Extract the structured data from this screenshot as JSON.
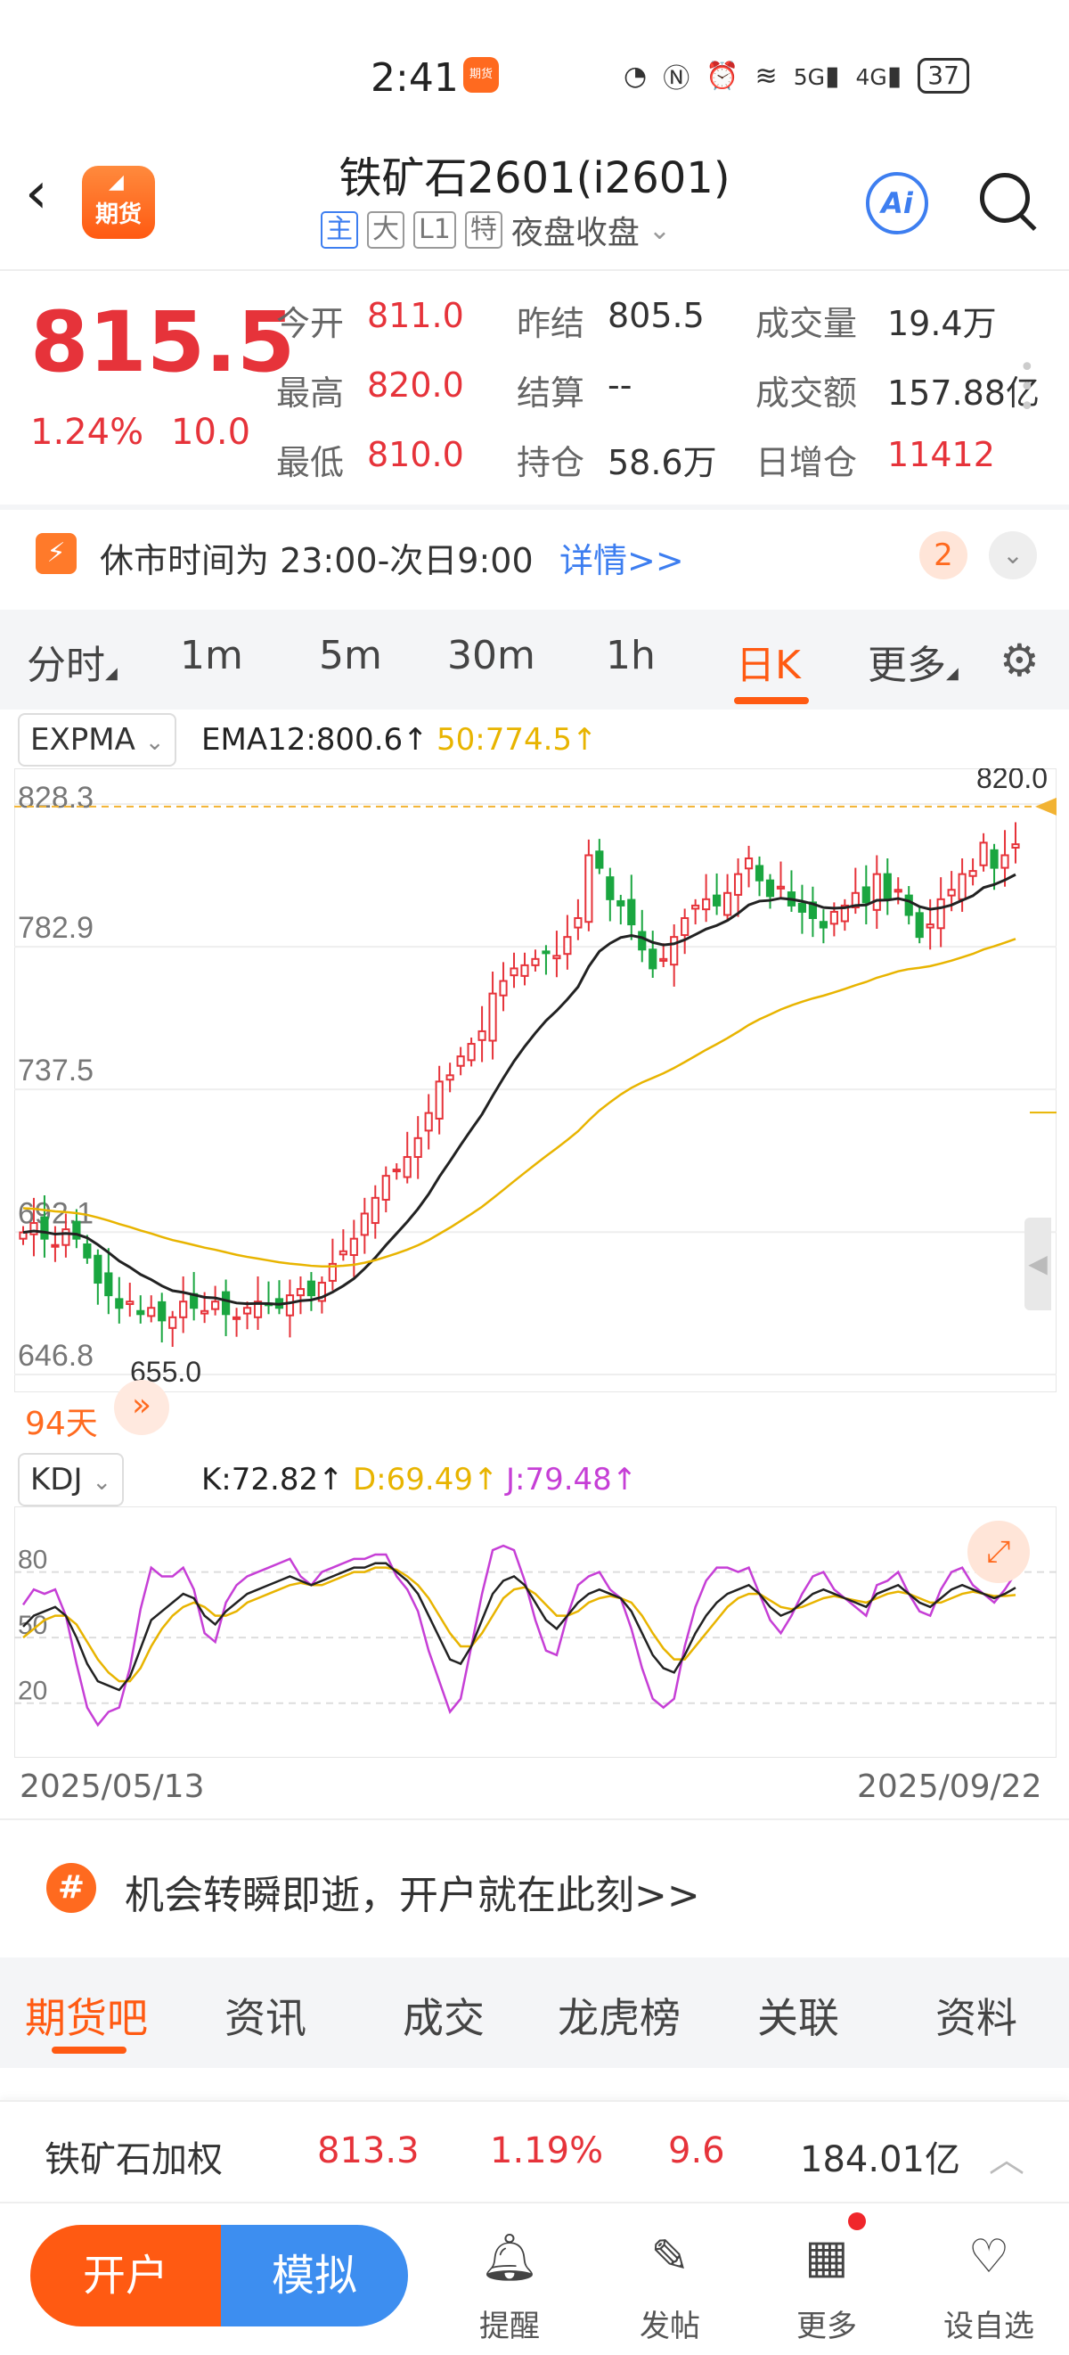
{
  "status": {
    "time": "2:41",
    "app_icon": "期货",
    "battery": "37",
    "signal1": "5G",
    "signal2": "4G"
  },
  "header": {
    "title": "铁矿石2601(i2601)",
    "tags": [
      "主",
      "大",
      "L1",
      "特"
    ],
    "session": "夜盘收盘",
    "logo_text": "期货",
    "ai_label": "Ai"
  },
  "quote": {
    "price": "815.5",
    "change_pct": "1.24%",
    "change": "10.0",
    "fields": [
      {
        "label": "今开",
        "value": "811.0",
        "color": "red"
      },
      {
        "label": "昨结",
        "value": "805.5",
        "color": "dark"
      },
      {
        "label": "成交量",
        "value": "19.4万",
        "color": "dark"
      },
      {
        "label": "最高",
        "value": "820.0",
        "color": "red"
      },
      {
        "label": "结算",
        "value": "--",
        "color": "dark"
      },
      {
        "label": "成交额",
        "value": "157.88亿",
        "color": "dark"
      },
      {
        "label": "最低",
        "value": "810.0",
        "color": "red"
      },
      {
        "label": "持仓",
        "value": "58.6万",
        "color": "dark"
      },
      {
        "label": "日增仓",
        "value": "11412",
        "color": "red"
      }
    ]
  },
  "notice": {
    "text": "休市时间为 23:00-次日9:00",
    "link": "详情>>",
    "badge": "2"
  },
  "period_tabs": [
    "分时",
    "1m",
    "5m",
    "30m",
    "1h",
    "日K",
    "更多"
  ],
  "active_period": "日K",
  "main_indicator": {
    "name": "EXPMA",
    "ema12": "EMA12:800.6↑",
    "ema50": "50:774.5↑"
  },
  "sub_indicator": {
    "name": "KDJ",
    "k": "K:72.82↑",
    "d": "D:69.49↑",
    "j": "J:79.48↑"
  },
  "days_label": "94天",
  "chart_data": [
    {
      "type": "candlestick",
      "title": "",
      "y_ticks": [
        "828.3",
        "782.9",
        "737.5",
        "692.1",
        "646.8"
      ],
      "ylim": [
        646.8,
        828.3
      ],
      "high_label": "820.0",
      "low_label": "655.0",
      "x_start": "2025/05/13",
      "x_end": "2025/09/22",
      "last_price_line": 815.5,
      "series": [
        {
          "name": "EMA12",
          "color": "#222222"
        },
        {
          "name": "50",
          "color": "#e8b400"
        }
      ],
      "closes": [
        692,
        695,
        690,
        688,
        693,
        690,
        684,
        676,
        672,
        668,
        670,
        666,
        668,
        664,
        665,
        670,
        668,
        667,
        670,
        666,
        665,
        668,
        670,
        669,
        668,
        672,
        674,
        672,
        676,
        682,
        686,
        690,
        698,
        703,
        710,
        712,
        716,
        722,
        730,
        740,
        742,
        748,
        752,
        756,
        768,
        772,
        776,
        777,
        779,
        781,
        780,
        786,
        792,
        812,
        808,
        798,
        796,
        790,
        782,
        776,
        779,
        786,
        792,
        796,
        798,
        796,
        800,
        806,
        811,
        804,
        799,
        802,
        796,
        794,
        792,
        789,
        794,
        796,
        800,
        797,
        806,
        798,
        801,
        793,
        786,
        790,
        798,
        801,
        806,
        807,
        816,
        808,
        812,
        815.5
      ],
      "volume_note": ""
    },
    {
      "type": "line",
      "title": "",
      "y_ticks": [
        "80",
        "50",
        "20"
      ],
      "ylim": [
        -5,
        110
      ],
      "k": [
        55,
        60,
        62,
        64,
        60,
        50,
        38,
        30,
        28,
        26,
        32,
        45,
        58,
        62,
        66,
        70,
        68,
        60,
        56,
        62,
        66,
        70,
        72,
        74,
        76,
        78,
        76,
        74,
        76,
        78,
        80,
        82,
        82,
        84,
        84,
        80,
        76,
        70,
        60,
        50,
        40,
        38,
        46,
        58,
        70,
        76,
        78,
        74,
        66,
        58,
        54,
        60,
        66,
        70,
        72,
        70,
        68,
        62,
        52,
        42,
        36,
        34,
        42,
        52,
        60,
        66,
        70,
        72,
        74,
        70,
        64,
        60,
        62,
        66,
        70,
        72,
        70,
        68,
        66,
        64,
        70,
        72,
        74,
        70,
        66,
        64,
        68,
        72,
        74,
        72,
        70,
        68,
        70,
        72.82
      ],
      "d": [
        50,
        54,
        58,
        60,
        60,
        56,
        48,
        40,
        34,
        30,
        30,
        36,
        46,
        54,
        60,
        64,
        66,
        64,
        60,
        60,
        62,
        66,
        68,
        70,
        72,
        74,
        75,
        74,
        74,
        76,
        78,
        80,
        80,
        82,
        82,
        81,
        78,
        74,
        68,
        60,
        52,
        46,
        46,
        52,
        60,
        68,
        72,
        73,
        70,
        65,
        60,
        60,
        62,
        66,
        68,
        69,
        68,
        66,
        60,
        52,
        45,
        40,
        40,
        46,
        52,
        58,
        64,
        68,
        70,
        70,
        67,
        64,
        63,
        64,
        66,
        68,
        69,
        68,
        67,
        66,
        68,
        70,
        71,
        70,
        68,
        66,
        66,
        68,
        70,
        71,
        70,
        69,
        69,
        69.49
      ],
      "j": [
        65,
        72,
        70,
        72,
        60,
        38,
        18,
        10,
        16,
        18,
        36,
        63,
        82,
        78,
        78,
        82,
        72,
        52,
        48,
        66,
        74,
        78,
        80,
        82,
        84,
        86,
        78,
        74,
        80,
        82,
        84,
        86,
        86,
        88,
        88,
        78,
        72,
        62,
        44,
        30,
        16,
        22,
        46,
        70,
        90,
        92,
        90,
        76,
        58,
        44,
        42,
        60,
        74,
        78,
        80,
        72,
        68,
        54,
        36,
        22,
        18,
        22,
        46,
        64,
        76,
        82,
        82,
        80,
        82,
        70,
        58,
        52,
        60,
        70,
        78,
        80,
        72,
        68,
        64,
        60,
        74,
        76,
        80,
        70,
        62,
        60,
        72,
        80,
        82,
        74,
        70,
        66,
        72,
        79.48
      ]
    }
  ],
  "ad": {
    "icon": "#",
    "text": "机会转瞬即逝，开户就在此刻>>"
  },
  "bottom_tabs": [
    "期货吧",
    "资讯",
    "成交",
    "龙虎榜",
    "关联",
    "资料"
  ],
  "weighted": {
    "name": "铁矿石加权",
    "price": "813.3",
    "pct": "1.19%",
    "change": "9.6",
    "amount": "184.01亿"
  },
  "bottom_bar": {
    "open_label": "开户",
    "sim_label": "模拟",
    "nav": [
      {
        "icon": "bell-icon",
        "label": "提醒"
      },
      {
        "icon": "edit-icon",
        "label": "发帖"
      },
      {
        "icon": "grid-icon",
        "label": "更多"
      },
      {
        "icon": "heart-icon",
        "label": "设自选"
      }
    ]
  }
}
